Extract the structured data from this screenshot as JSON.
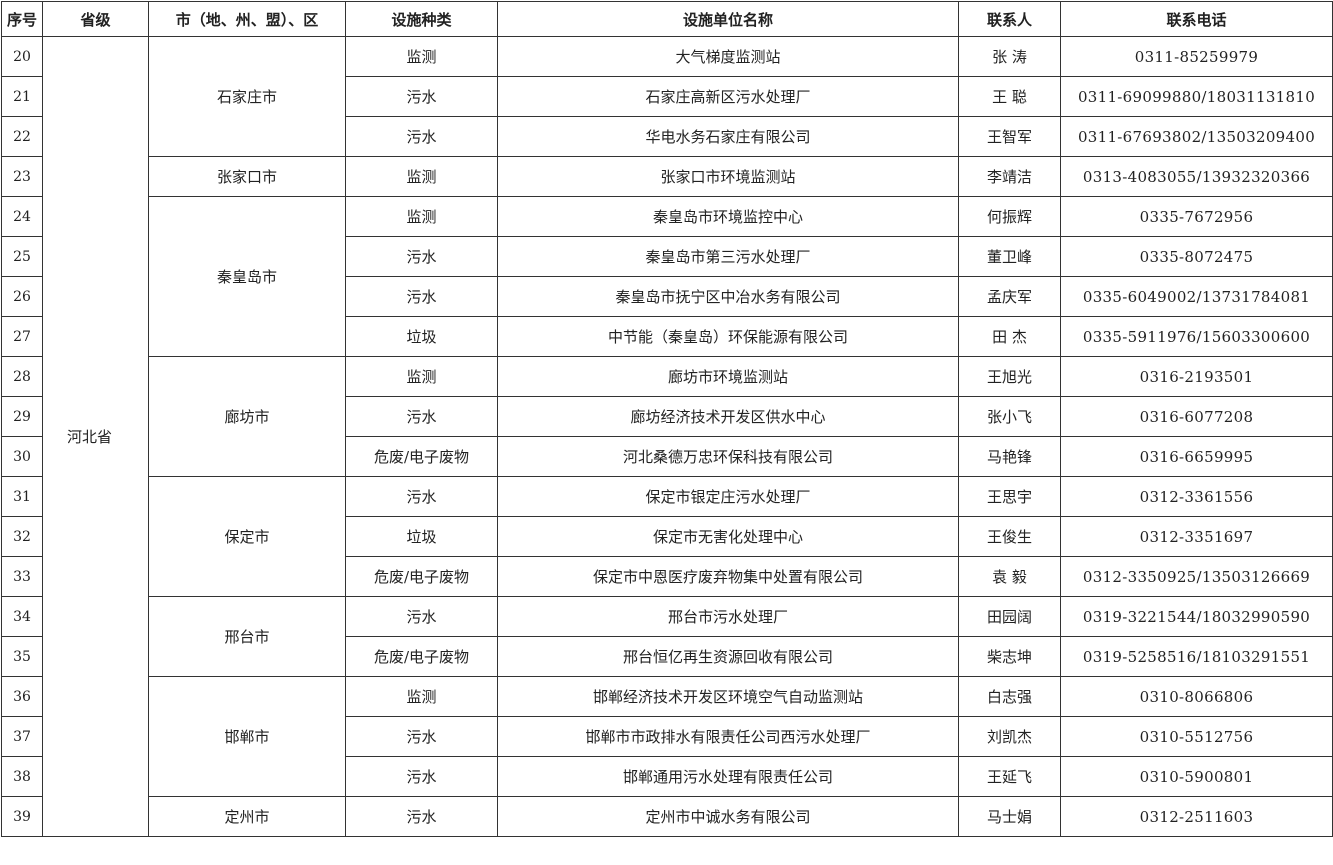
{
  "table": {
    "header": [
      "序号",
      "省级",
      "市（地、州、盟）、区",
      "设施种类",
      "设施单位名称",
      "联系人",
      "联系电话"
    ],
    "province": "河北省",
    "cities": [
      {
        "name": "石家庄市",
        "rows": [
          [
            20,
            "监测",
            "大气梯度监测站",
            "张 涛",
            "0311-85259979"
          ],
          [
            21,
            "污水",
            "石家庄高新区污水处理厂",
            "王 聪",
            "0311-69099880/18031131810"
          ],
          [
            22,
            "污水",
            "华电水务石家庄有限公司",
            "王智军",
            "0311-67693802/13503209400"
          ]
        ]
      },
      {
        "name": "张家口市",
        "rows": [
          [
            23,
            "监测",
            "张家口市环境监测站",
            "李靖洁",
            "0313-4083055/13932320366"
          ]
        ]
      },
      {
        "name": "秦皇岛市",
        "rows": [
          [
            24,
            "监测",
            "秦皇岛市环境监控中心",
            "何振辉",
            "0335-7672956"
          ],
          [
            25,
            "污水",
            "秦皇岛市第三污水处理厂",
            "董卫峰",
            "0335-8072475"
          ],
          [
            26,
            "污水",
            "秦皇岛市抚宁区中冶水务有限公司",
            "孟庆军",
            "0335-6049002/13731784081"
          ],
          [
            27,
            "垃圾",
            "中节能（秦皇岛）环保能源有限公司",
            "田 杰",
            "0335-5911976/15603300600"
          ]
        ]
      },
      {
        "name": "廊坊市",
        "rows": [
          [
            28,
            "监测",
            "廊坊市环境监测站",
            "王旭光",
            "0316-2193501"
          ],
          [
            29,
            "污水",
            "廊坊经济技术开发区供水中心",
            "张小飞",
            "0316-6077208"
          ],
          [
            30,
            "危废/电子废物",
            "河北桑德万忠环保科技有限公司",
            "马艳锋",
            "0316-6659995"
          ]
        ]
      },
      {
        "name": "保定市",
        "rows": [
          [
            31,
            "污水",
            "保定市银定庄污水处理厂",
            "王思宇",
            "0312-3361556"
          ],
          [
            32,
            "垃圾",
            "保定市无害化处理中心",
            "王俊生",
            "0312-3351697"
          ],
          [
            33,
            "危废/电子废物",
            "保定市中恩医疗废弃物集中处置有限公司",
            "袁 毅",
            "0312-3350925/13503126669"
          ]
        ]
      },
      {
        "name": "邢台市",
        "rows": [
          [
            34,
            "污水",
            "邢台市污水处理厂",
            "田园阔",
            "0319-3221544/18032990590"
          ],
          [
            35,
            "危废/电子废物",
            "邢台恒亿再生资源回收有限公司",
            "柴志坤",
            "0319-5258516/18103291551"
          ]
        ]
      },
      {
        "name": "邯郸市",
        "rows": [
          [
            36,
            "监测",
            "邯郸经济技术开发区环境空气自动监测站",
            "白志强",
            "0310-8066806"
          ],
          [
            37,
            "污水",
            "邯郸市市政排水有限责任公司西污水处理厂",
            "刘凯杰",
            "0310-5512756"
          ],
          [
            38,
            "污水",
            "邯郸通用污水处理有限责任公司",
            "王延飞",
            "0310-5900801"
          ]
        ]
      },
      {
        "name": "定州市",
        "rows": [
          [
            39,
            "污水",
            "定州市中诚水务有限公司",
            "马士娟",
            "0312-2511603"
          ]
        ]
      }
    ]
  }
}
